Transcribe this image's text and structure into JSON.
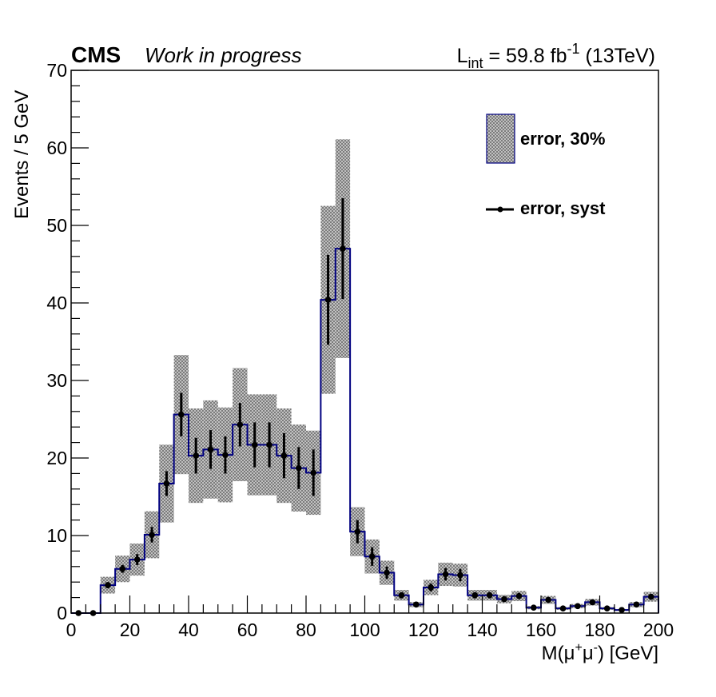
{
  "chart_data": {
    "type": "bar",
    "style": "histogram with hatched error band and error-bar points",
    "experiment_label": "CMS",
    "status_label": "Work in progress",
    "lumi_label": {
      "prefix": "L",
      "subscript": "int",
      "middle": " = 59.8 fb",
      "superscript": "-1",
      "suffix": " (13TeV)"
    },
    "ylabel": "Events / 5 GeV",
    "xlabel": {
      "prefix": "M(μ",
      "sup1": "+",
      "mid": "μ",
      "sup2": "-",
      "suffix": ") [GeV]"
    },
    "xlim": [
      0,
      200
    ],
    "ylim": [
      0,
      70
    ],
    "x_ticks": [
      "0",
      "20",
      "40",
      "60",
      "80",
      "100",
      "120",
      "140",
      "160",
      "180",
      "200"
    ],
    "y_ticks": [
      "0",
      "10",
      "20",
      "30",
      "40",
      "50",
      "60",
      "70"
    ],
    "bin_width": 5,
    "bin_low_edges": [
      0,
      5,
      10,
      15,
      20,
      25,
      30,
      35,
      40,
      45,
      50,
      55,
      60,
      65,
      70,
      75,
      80,
      85,
      90,
      95,
      100,
      105,
      110,
      115,
      120,
      125,
      130,
      135,
      140,
      145,
      150,
      155,
      160,
      165,
      170,
      175,
      180,
      185,
      190,
      195
    ],
    "values": [
      0,
      0,
      3.6,
      5.7,
      6.9,
      10.1,
      16.7,
      25.6,
      20.3,
      21.1,
      20.4,
      24.3,
      21.7,
      21.7,
      20.3,
      18.7,
      18.1,
      40.4,
      47.0,
      10.5,
      7.3,
      5.2,
      2.3,
      1.1,
      3.3,
      5.0,
      4.9,
      2.3,
      2.3,
      1.8,
      2.2,
      0.7,
      1.7,
      0.6,
      0.9,
      1.4,
      0.6,
      0.4,
      1.1,
      2.1
    ],
    "syst_errors": [
      0,
      0,
      0.4,
      0.5,
      0.7,
      1.0,
      1.6,
      2.8,
      2.3,
      2.5,
      2.4,
      2.8,
      2.9,
      2.9,
      2.9,
      2.7,
      3.0,
      5.8,
      6.5,
      1.5,
      1.2,
      0.8,
      0.4,
      0.2,
      0.5,
      0.8,
      0.8,
      0.4,
      0.4,
      0.3,
      0.4,
      0.1,
      0.3,
      0.1,
      0.2,
      0.2,
      0.1,
      0.1,
      0.2,
      0.3
    ],
    "band_fraction": 0.3,
    "series": [
      {
        "name": "error, 30%",
        "role": "hatched-band"
      },
      {
        "name": "error, syst",
        "role": "points-with-error-bars"
      }
    ],
    "legend_position": "top-right",
    "grid": false,
    "colors": {
      "histogram_line": "#000080",
      "band_fill": "#b0b0b0",
      "points": "#000000"
    }
  }
}
